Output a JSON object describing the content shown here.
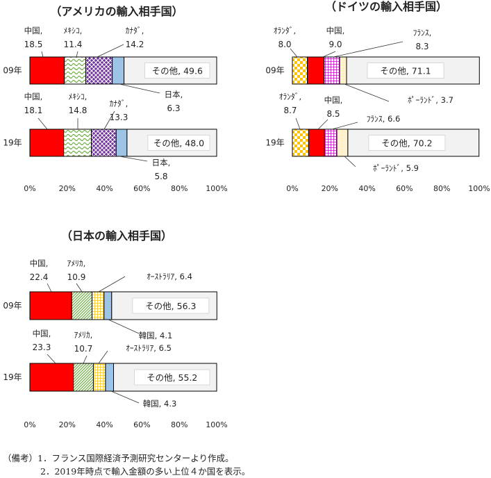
{
  "chart_data": [
    {
      "type": "bar",
      "orientation": "horizontal-stacked-percent",
      "title": "（アメリカの輸入相手国）",
      "categories": [
        "09年",
        "19年"
      ],
      "xlim": [
        0,
        100
      ],
      "xticks": [
        "0%",
        "20%",
        "40%",
        "60%",
        "80%",
        "100%"
      ],
      "legend": "none",
      "series": [
        {
          "labels": [
            "中国,",
            "中国,"
          ],
          "values": [
            18.5,
            18.1
          ],
          "value_text": [
            "18.5",
            "18.1"
          ],
          "color": "#ff0000",
          "pattern": "solid"
        },
        {
          "labels": [
            "ﾒｷｼｺ,",
            "ﾒｷｼｺ,"
          ],
          "values": [
            11.4,
            14.8
          ],
          "value_text": [
            "11.4",
            "14.8"
          ],
          "color": "#70ad47",
          "pattern": "wave"
        },
        {
          "labels": [
            "ｶﾅﾀﾞ,",
            "ｶﾅﾀﾞ,"
          ],
          "values": [
            14.2,
            13.3
          ],
          "value_text": [
            "14.2",
            "13.3"
          ],
          "color": "#7030a0",
          "pattern": "lattice"
        },
        {
          "labels": [
            "日本,",
            "日本,"
          ],
          "values": [
            6.3,
            5.8
          ],
          "value_text": [
            "6.3",
            "5.8"
          ],
          "color": "#9dc3e6",
          "pattern": "solid"
        },
        {
          "labels": [
            "その他,",
            "その他,"
          ],
          "values": [
            49.6,
            48.0
          ],
          "value_text": [
            "49.6",
            "48.0"
          ],
          "color": "#f2f2f2",
          "pattern": "solid"
        }
      ]
    },
    {
      "type": "bar",
      "orientation": "horizontal-stacked-percent",
      "title": "（ドイツの輸入相手国）",
      "categories": [
        "09年",
        "19年"
      ],
      "xlim": [
        0,
        100
      ],
      "xticks": [
        "0%",
        "20%",
        "40%",
        "60%",
        "80%",
        "100%"
      ],
      "legend": "none",
      "series": [
        {
          "labels": [
            "ｵﾗﾝﾀﾞ,",
            "ｵﾗﾝﾀﾞ,"
          ],
          "values": [
            8.0,
            8.7
          ],
          "value_text": [
            "8.0",
            "8.7"
          ],
          "color": "#ffc000",
          "pattern": "checker"
        },
        {
          "labels": [
            "中国,",
            "中国,"
          ],
          "values": [
            9.0,
            8.5
          ],
          "value_text": [
            "9.0",
            "8.5"
          ],
          "color": "#ff0000",
          "pattern": "solid"
        },
        {
          "labels": [
            "ﾌﾗﾝｽ,",
            "ﾌﾗﾝｽ,"
          ],
          "values": [
            8.3,
            6.6
          ],
          "value_text": [
            "8.3",
            "6.6"
          ],
          "color": "#cc00cc",
          "pattern": "grid"
        },
        {
          "labels": [
            "ﾎﾟｰﾗﾝﾄﾞ,",
            "ﾎﾟｰﾗﾝﾄﾞ,"
          ],
          "values": [
            3.7,
            5.9
          ],
          "value_text": [
            "3.7",
            "5.9"
          ],
          "color": "#fff2cc",
          "pattern": "solid"
        },
        {
          "labels": [
            "その他,",
            "その他,"
          ],
          "values": [
            71.1,
            70.2
          ],
          "value_text": [
            "71.1",
            "70.2"
          ],
          "color": "#f2f2f2",
          "pattern": "solid"
        }
      ]
    },
    {
      "type": "bar",
      "orientation": "horizontal-stacked-percent",
      "title": "（日本の輸入相手国）",
      "categories": [
        "09年",
        "19年"
      ],
      "xlim": [
        0,
        100
      ],
      "xticks": [
        "0%",
        "20%",
        "40%",
        "60%",
        "80%",
        "100%"
      ],
      "legend": "none",
      "series": [
        {
          "labels": [
            "中国,",
            "中国,"
          ],
          "values": [
            22.4,
            23.3
          ],
          "value_text": [
            "22.4",
            "23.3"
          ],
          "color": "#ff0000",
          "pattern": "solid"
        },
        {
          "labels": [
            "ｱﾒﾘｶ,",
            "ｱﾒﾘｶ,"
          ],
          "values": [
            10.9,
            10.7
          ],
          "value_text": [
            "10.9",
            "10.7"
          ],
          "color": "#70ad47",
          "pattern": "diagonal"
        },
        {
          "labels": [
            "ｵｰｽﾄﾗﾘｱ,",
            "ｵｰｽﾄﾗﾘｱ,"
          ],
          "values": [
            6.4,
            6.5
          ],
          "value_text": [
            "6.4",
            "6.5"
          ],
          "color": "#ffc000",
          "pattern": "grid"
        },
        {
          "labels": [
            "韓国,",
            "韓国,"
          ],
          "values": [
            4.1,
            4.3
          ],
          "value_text": [
            "4.1",
            "4.3"
          ],
          "color": "#9dc3e6",
          "pattern": "solid"
        },
        {
          "labels": [
            "その他,",
            "その他,"
          ],
          "values": [
            56.3,
            55.2
          ],
          "value_text": [
            "56.3",
            "55.2"
          ],
          "color": "#f2f2f2",
          "pattern": "solid"
        }
      ]
    }
  ],
  "notes": {
    "prefix": "（備考）",
    "items": [
      "1．フランス国際経済予測研究センターより作成。",
      "2．2019年時点で輸入金額の多い上位４か国を表示。"
    ]
  }
}
